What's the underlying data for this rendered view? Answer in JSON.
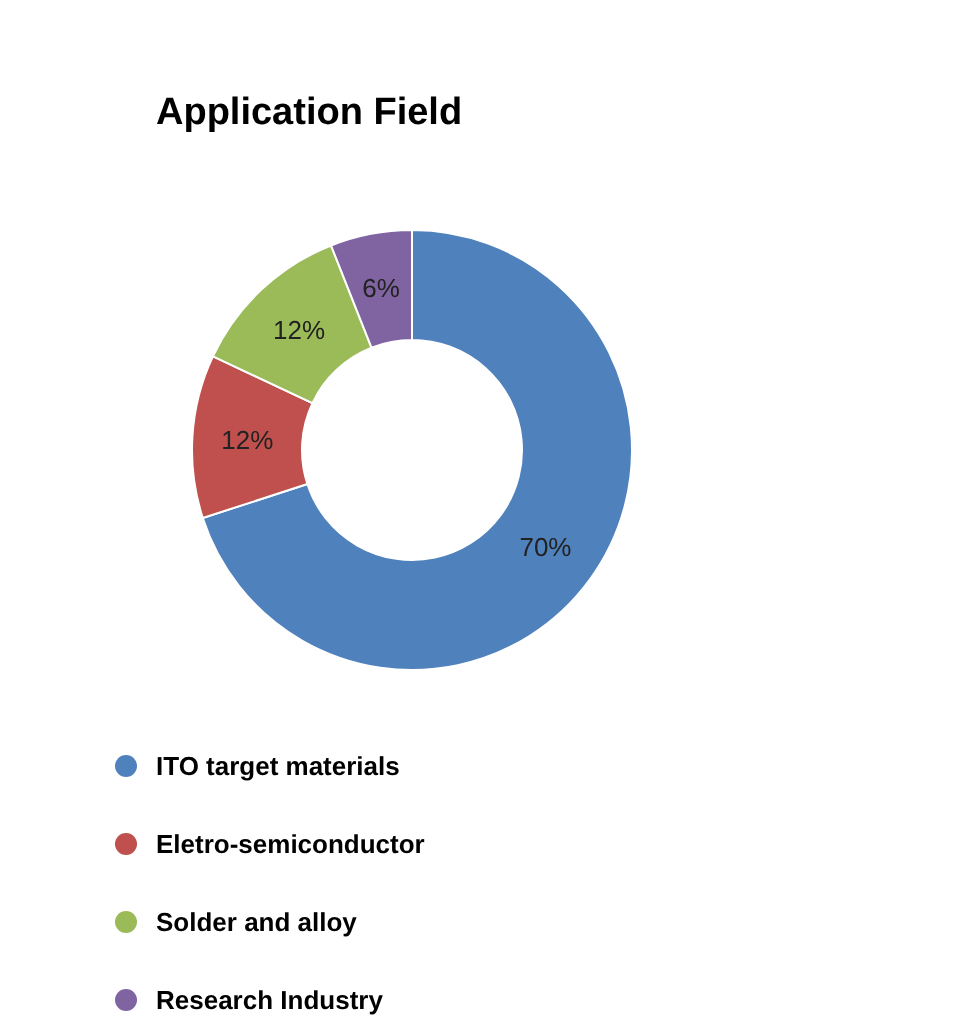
{
  "chart_data": {
    "type": "donut",
    "title": "Application Field",
    "categories": [
      "ITO target materials",
      "Eletro-semiconductor",
      "Solder and alloy",
      "Research Industry"
    ],
    "values": [
      70,
      12,
      12,
      6
    ],
    "colors": [
      "#4f81bd",
      "#c0504d",
      "#9bbb59",
      "#8064a2"
    ],
    "value_labels": [
      "70%",
      "12%",
      "12%",
      "6%"
    ],
    "legend": "bottom"
  }
}
